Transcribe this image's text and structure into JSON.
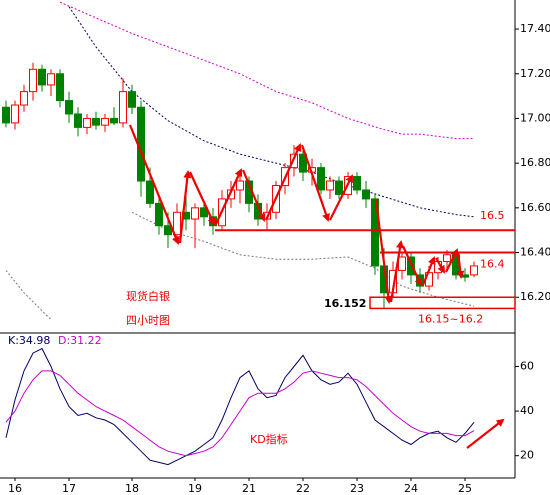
{
  "chart_data": [
    {
      "type": "candlestick",
      "open": [
        17.05,
        16.98,
        17.06,
        17.12,
        17.22,
        17.15,
        17.2,
        17.08,
        17.02,
        16.96,
        17.0,
        16.97,
        17.0,
        16.98,
        17.12,
        17.05,
        16.72,
        16.62,
        16.52,
        16.48,
        16.58,
        16.55,
        16.6,
        16.56,
        16.52,
        16.64,
        16.68,
        16.72,
        16.62,
        16.55,
        16.58,
        16.7,
        16.78,
        16.84,
        16.76,
        16.78,
        16.68,
        16.72,
        16.66,
        16.74,
        16.68,
        16.64,
        16.34,
        16.22,
        16.32,
        16.38,
        16.3,
        16.25,
        16.31,
        16.36,
        16.39,
        16.3,
        16.3
      ],
      "high": [
        17.08,
        17.08,
        17.15,
        17.25,
        17.24,
        17.22,
        17.22,
        17.12,
        17.05,
        17.02,
        17.03,
        17.02,
        17.05,
        17.18,
        17.15,
        17.08,
        16.78,
        16.66,
        16.58,
        16.62,
        16.7,
        16.62,
        16.63,
        16.6,
        16.68,
        16.72,
        16.75,
        16.74,
        16.66,
        16.62,
        16.72,
        16.8,
        16.88,
        16.86,
        16.82,
        16.8,
        16.74,
        16.74,
        16.76,
        16.76,
        16.72,
        16.66,
        16.42,
        16.36,
        16.4,
        16.4,
        16.33,
        16.34,
        16.38,
        16.41,
        16.4,
        16.33,
        16.36
      ],
      "low": [
        16.96,
        16.95,
        17.03,
        17.08,
        17.12,
        17.1,
        17.05,
        16.98,
        16.92,
        16.93,
        16.95,
        16.94,
        16.97,
        16.96,
        17.02,
        16.65,
        16.6,
        16.48,
        16.42,
        16.45,
        16.5,
        16.42,
        16.52,
        16.48,
        16.5,
        16.6,
        16.62,
        16.58,
        16.52,
        16.5,
        16.55,
        16.66,
        16.74,
        16.72,
        16.7,
        16.66,
        16.64,
        16.64,
        16.64,
        16.66,
        16.6,
        16.3,
        16.152,
        16.2,
        16.28,
        16.26,
        16.22,
        16.23,
        16.28,
        16.32,
        16.28,
        16.27,
        16.29
      ],
      "close": [
        16.98,
        17.06,
        17.12,
        17.22,
        17.15,
        17.2,
        17.08,
        17.02,
        16.96,
        17.0,
        16.97,
        17.0,
        16.98,
        17.12,
        17.05,
        16.72,
        16.62,
        16.52,
        16.48,
        16.58,
        16.55,
        16.6,
        16.56,
        16.52,
        16.64,
        16.68,
        16.72,
        16.62,
        16.55,
        16.58,
        16.7,
        16.78,
        16.84,
        16.76,
        16.78,
        16.68,
        16.72,
        16.66,
        16.74,
        16.68,
        16.64,
        16.34,
        16.22,
        16.32,
        16.38,
        16.3,
        16.25,
        16.31,
        16.36,
        16.39,
        16.3,
        16.29,
        16.34
      ],
      "up_color": "#ff0000",
      "down_color": "#008000",
      "overlays": [
        {
          "color": "#cc00cc",
          "x": [
            6,
            10,
            14,
            18,
            22,
            26,
            30,
            34,
            38,
            42,
            44,
            46,
            50,
            52
          ],
          "values": [
            17.52,
            17.45,
            17.38,
            17.32,
            17.26,
            17.2,
            17.12,
            17.07,
            17.0,
            16.95,
            16.93,
            16.93,
            16.91,
            16.91
          ]
        },
        {
          "color": "#000066",
          "x": [
            7,
            10,
            14,
            18,
            22,
            26,
            30,
            34,
            38,
            42,
            46,
            50,
            52
          ],
          "values": [
            17.5,
            17.32,
            17.12,
            16.99,
            16.9,
            16.84,
            16.8,
            16.76,
            16.7,
            16.65,
            16.6,
            16.57,
            16.56
          ]
        },
        {
          "color": "#777777",
          "x": [
            0,
            2,
            4,
            5,
            9,
            14,
            18,
            22,
            26,
            30,
            34,
            38,
            41,
            44,
            48,
            52
          ],
          "values": [
            16.32,
            16.22,
            16.14,
            16.1,
            null,
            16.58,
            16.5,
            16.45,
            16.39,
            16.37,
            16.37,
            16.38,
            16.33,
            16.25,
            16.2,
            16.16
          ]
        }
      ],
      "ylim": [
        16.04,
        17.53
      ],
      "yticks": [
        {
          "value": 17.4,
          "label": "17.40"
        },
        {
          "value": 17.2,
          "label": "17.20"
        },
        {
          "value": 17.0,
          "label": "17.00"
        },
        {
          "value": 16.8,
          "label": "16.80"
        },
        {
          "value": 16.6,
          "label": "16.60"
        },
        {
          "value": 16.4,
          "label": "16.40"
        },
        {
          "value": 16.2,
          "label": "16.20"
        }
      ],
      "levels": [
        16.5,
        16.4
      ],
      "zone": {
        "low": 16.15,
        "high": 16.2,
        "label": "16.15~16.2"
      },
      "low_marker": 16.152,
      "annotations": [
        "现货白银",
        "四小时图"
      ]
    },
    {
      "type": "line",
      "series": [
        {
          "name": "K:34.98",
          "color": "#000066",
          "values": [
            28,
            45,
            58,
            66,
            68,
            60,
            50,
            42,
            38,
            39,
            37,
            36,
            34,
            30,
            26,
            22,
            18,
            17,
            16,
            18,
            20,
            22,
            25,
            28,
            36,
            46,
            55,
            58,
            50,
            46,
            47,
            55,
            60,
            65,
            58,
            54,
            52,
            53,
            57,
            52,
            44,
            36,
            33,
            30,
            27,
            25,
            28,
            30,
            31,
            28,
            26,
            30,
            34.98
          ]
        },
        {
          "name": "D:31.22",
          "color": "#cc00cc",
          "values": [
            35,
            40,
            48,
            54,
            58,
            58,
            56,
            52,
            48,
            45,
            42,
            40,
            38,
            36,
            33,
            30,
            27,
            24,
            22,
            21,
            20,
            21,
            22,
            24,
            28,
            34,
            40,
            46,
            48,
            48,
            48,
            50,
            53,
            57,
            58,
            57,
            56,
            55,
            55,
            54,
            51,
            47,
            43,
            39,
            36,
            33,
            31,
            30,
            30,
            30,
            29,
            29,
            31.22
          ]
        }
      ],
      "categories": [
        null,
        "16",
        null,
        null,
        null,
        null,
        null,
        "17",
        null,
        null,
        null,
        null,
        null,
        null,
        "18",
        null,
        null,
        null,
        null,
        null,
        null,
        "19",
        null,
        null,
        null,
        null,
        null,
        "21",
        null,
        null,
        null,
        null,
        null,
        "22",
        null,
        null,
        null,
        null,
        null,
        "23",
        null,
        null,
        null,
        null,
        null,
        "24",
        null,
        null,
        null,
        null,
        null,
        "25",
        null
      ],
      "ylim": [
        10,
        75
      ],
      "yticks": [
        60,
        40,
        20
      ],
      "annotation": "KD指标"
    }
  ]
}
